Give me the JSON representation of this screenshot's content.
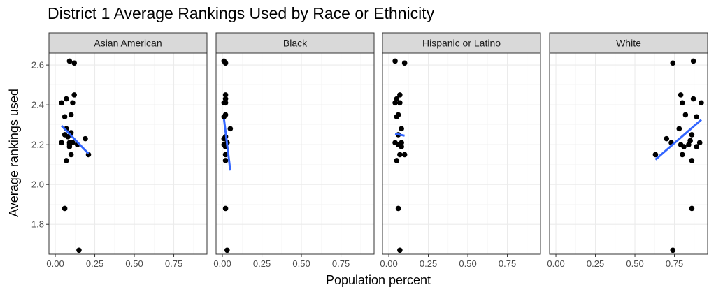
{
  "title": "District 1 Average Rankings Used by Race or Ethnicity",
  "chart_data": {
    "type": "scatter",
    "title": "District 1 Average Rankings Used by Race or Ethnicity",
    "xlabel": "Population percent",
    "ylabel": "Average rankings used",
    "xlim": [
      -0.04,
      0.96
    ],
    "ylim": [
      1.65,
      2.66
    ],
    "x_ticks": [
      "0.00",
      "0.25",
      "0.50",
      "0.75"
    ],
    "x_tick_values": [
      0,
      0.25,
      0.5,
      0.75
    ],
    "y_ticks": [
      "1.8",
      "2.0",
      "2.2",
      "2.4",
      "2.6"
    ],
    "y_tick_values": [
      1.8,
      2.0,
      2.2,
      2.4,
      2.6
    ],
    "grid": true,
    "facets": [
      {
        "label": "Asian American",
        "points": [
          [
            0.09,
            2.62
          ],
          [
            0.12,
            2.61
          ],
          [
            0.12,
            2.45
          ],
          [
            0.07,
            2.43
          ],
          [
            0.04,
            2.41
          ],
          [
            0.11,
            2.41
          ],
          [
            0.1,
            2.35
          ],
          [
            0.06,
            2.34
          ],
          [
            0.07,
            2.28
          ],
          [
            0.1,
            2.26
          ],
          [
            0.06,
            2.25
          ],
          [
            0.08,
            2.24
          ],
          [
            0.19,
            2.23
          ],
          [
            0.11,
            2.21
          ],
          [
            0.04,
            2.21
          ],
          [
            0.09,
            2.21
          ],
          [
            0.09,
            2.2
          ],
          [
            0.14,
            2.2
          ],
          [
            0.09,
            2.19
          ],
          [
            0.1,
            2.15
          ],
          [
            0.21,
            2.15
          ],
          [
            0.07,
            2.12
          ],
          [
            0.06,
            1.88
          ],
          [
            0.15,
            1.67
          ]
        ],
        "fit": [
          [
            0.04,
            2.295
          ],
          [
            0.21,
            2.155
          ]
        ]
      },
      {
        "label": "Black",
        "points": [
          [
            0.01,
            2.62
          ],
          [
            0.02,
            2.61
          ],
          [
            0.02,
            2.45
          ],
          [
            0.02,
            2.43
          ],
          [
            0.01,
            2.41
          ],
          [
            0.02,
            2.41
          ],
          [
            0.02,
            2.35
          ],
          [
            0.01,
            2.34
          ],
          [
            0.05,
            2.28
          ],
          [
            0.02,
            2.24
          ],
          [
            0.01,
            2.23
          ],
          [
            0.03,
            2.21
          ],
          [
            0.01,
            2.2
          ],
          [
            0.02,
            2.19
          ],
          [
            0.02,
            2.15
          ],
          [
            0.02,
            2.12
          ],
          [
            0.02,
            1.88
          ],
          [
            0.03,
            1.67
          ]
        ],
        "fit": [
          [
            0.01,
            2.33
          ],
          [
            0.05,
            2.07
          ]
        ]
      },
      {
        "label": "Hispanic or Latino",
        "points": [
          [
            0.04,
            2.62
          ],
          [
            0.1,
            2.61
          ],
          [
            0.07,
            2.45
          ],
          [
            0.05,
            2.43
          ],
          [
            0.04,
            2.41
          ],
          [
            0.07,
            2.41
          ],
          [
            0.06,
            2.35
          ],
          [
            0.05,
            2.34
          ],
          [
            0.08,
            2.28
          ],
          [
            0.06,
            2.25
          ],
          [
            0.04,
            2.21
          ],
          [
            0.08,
            2.21
          ],
          [
            0.06,
            2.2
          ],
          [
            0.08,
            2.19
          ],
          [
            0.07,
            2.15
          ],
          [
            0.1,
            2.15
          ],
          [
            0.05,
            2.12
          ],
          [
            0.06,
            1.88
          ],
          [
            0.07,
            1.67
          ]
        ],
        "fit": [
          [
            0.04,
            2.255
          ],
          [
            0.1,
            2.245
          ]
        ]
      },
      {
        "label": "White",
        "points": [
          [
            0.74,
            2.61
          ],
          [
            0.87,
            2.62
          ],
          [
            0.79,
            2.45
          ],
          [
            0.87,
            2.43
          ],
          [
            0.8,
            2.41
          ],
          [
            0.92,
            2.41
          ],
          [
            0.82,
            2.35
          ],
          [
            0.89,
            2.34
          ],
          [
            0.78,
            2.28
          ],
          [
            0.86,
            2.25
          ],
          [
            0.7,
            2.23
          ],
          [
            0.85,
            2.22
          ],
          [
            0.73,
            2.21
          ],
          [
            0.91,
            2.21
          ],
          [
            0.84,
            2.2
          ],
          [
            0.79,
            2.2
          ],
          [
            0.81,
            2.19
          ],
          [
            0.89,
            2.19
          ],
          [
            0.8,
            2.15
          ],
          [
            0.63,
            2.15
          ],
          [
            0.86,
            2.12
          ],
          [
            0.86,
            1.88
          ],
          [
            0.74,
            1.67
          ]
        ],
        "fit": [
          [
            0.63,
            2.125
          ],
          [
            0.92,
            2.325
          ]
        ]
      }
    ]
  },
  "colors": {
    "point": "#000000",
    "fit_line": "#3366FF",
    "strip_fill": "#d9d9d9",
    "strip_border": "#333333",
    "panel_border": "#333333",
    "grid_major": "#ebebeb",
    "grid_minor": "#f5f5f5",
    "tick_label": "#4d4d4d"
  }
}
